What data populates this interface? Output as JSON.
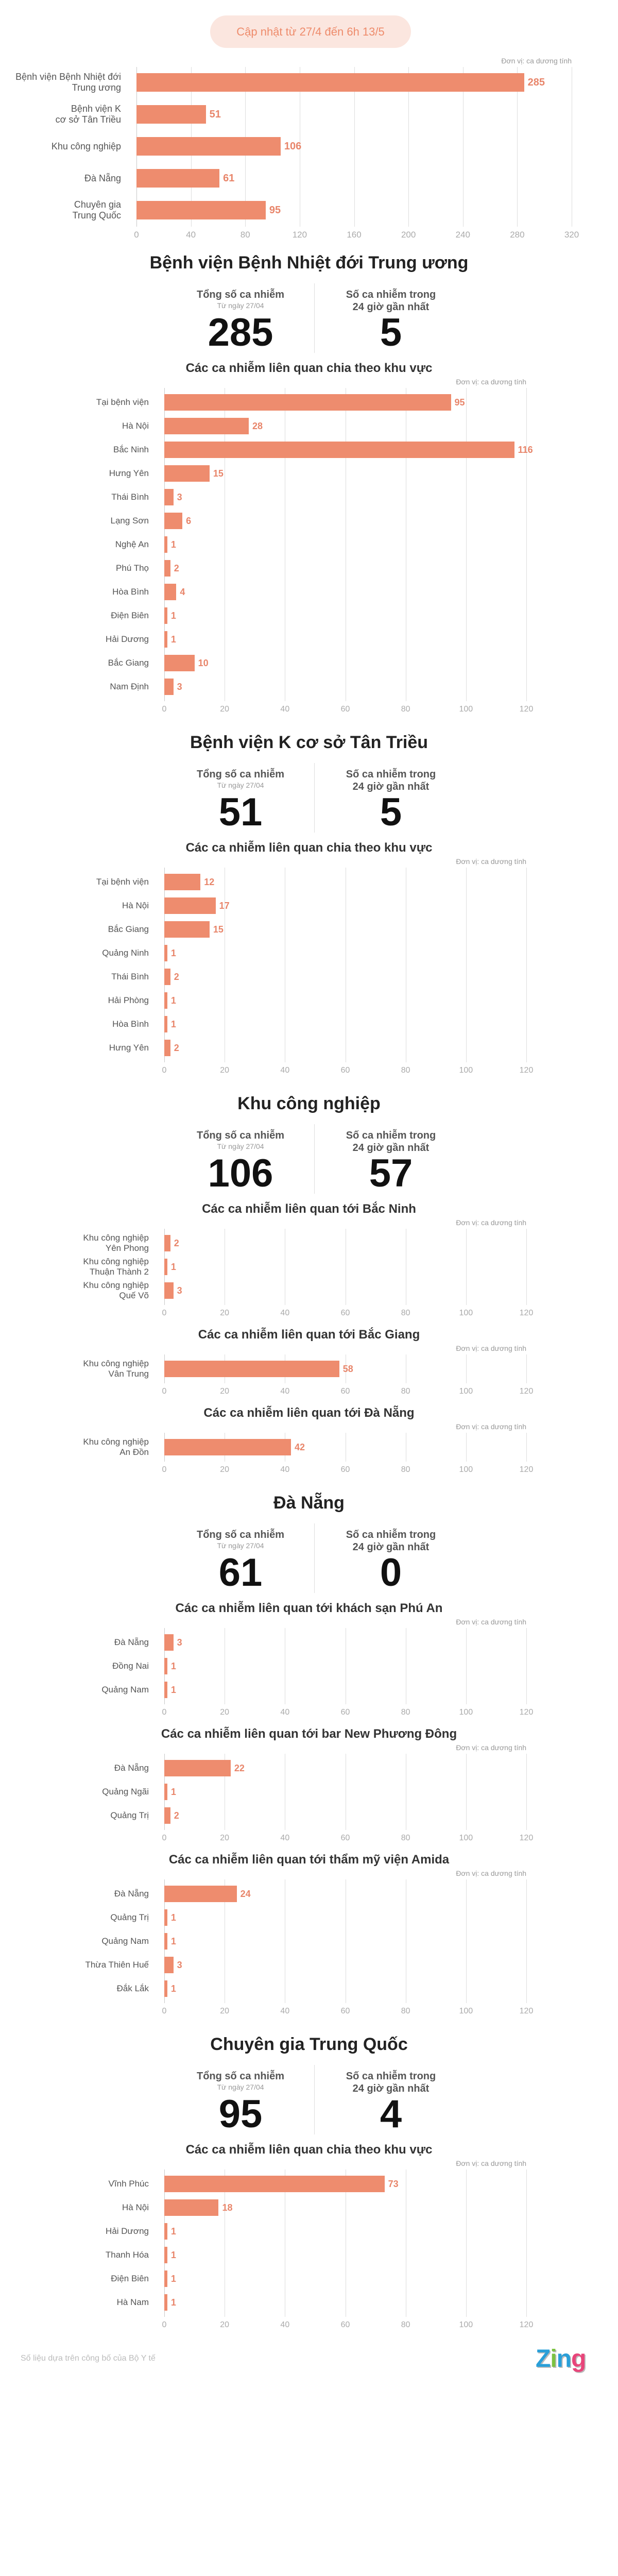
{
  "header": {
    "update_label": "Cập nhật từ 27/4 đến 6h 13/5"
  },
  "stats_labels": {
    "total": "Tổng số ca nhiễm",
    "since": "Từ ngày 27/04",
    "recent_line1": "Số ca nhiễm trong",
    "recent_line2": "24 giờ gần nhất"
  },
  "sections": [
    {
      "title": "Bệnh viện Bệnh Nhiệt đới Trung ương",
      "total": "285",
      "recent": "5"
    },
    {
      "title": "Bệnh viện K cơ sở Tân Triều",
      "total": "51",
      "recent": "5"
    },
    {
      "title": "Khu công nghiệp",
      "total": "106",
      "recent": "57"
    },
    {
      "title": "Đà Nẵng",
      "total": "61",
      "recent": "0"
    },
    {
      "title": "Chuyên gia Trung Quốc",
      "total": "95",
      "recent": "4"
    }
  ],
  "footer": {
    "source": "Số liệu dựa trên công bố của Bộ Y tế",
    "logo": "Zing"
  },
  "colors": {
    "bar": "#ee8c6e",
    "value_label": "#e8856a",
    "pill_bg": "#fbe6df",
    "pill_text": "#ee8b6b",
    "logo": [
      "#2a9fd8",
      "#7cc242",
      "#2a9fd8",
      "#e8457a"
    ]
  },
  "chart_data": [
    {
      "type": "bar",
      "orientation": "horizontal",
      "title": "",
      "unit": "Đơn vị: ca dương tính",
      "categories": [
        "Bệnh viện Bệnh Nhiệt đới\nTrung ương",
        "Bệnh viện K\ncơ sở Tân Triều",
        "Khu công nghiệp",
        "Đà Nẵng",
        "Chuyên gia\nTrung Quốc"
      ],
      "values": [
        285,
        51,
        106,
        61,
        95
      ],
      "xlim": [
        0,
        320
      ],
      "xticks": [
        0,
        40,
        80,
        120,
        160,
        200,
        240,
        280,
        320
      ],
      "grid": true
    },
    {
      "type": "bar",
      "orientation": "horizontal",
      "title": "Các ca nhiễm liên quan chia theo khu vực",
      "unit": "Đơn vị: ca dương tính",
      "categories": [
        "Tại bệnh viện",
        "Hà Nội",
        "Bắc Ninh",
        "Hưng Yên",
        "Thái Bình",
        "Lạng Sơn",
        "Nghệ An",
        "Phú Thọ",
        "Hòa Bình",
        "Điện Biên",
        "Hải Dương",
        "Bắc Giang",
        "Nam Định"
      ],
      "values": [
        95,
        28,
        116,
        15,
        3,
        6,
        1,
        2,
        4,
        1,
        1,
        10,
        3
      ],
      "xlim": [
        0,
        120
      ],
      "xticks": [
        0,
        20,
        40,
        60,
        80,
        100,
        120
      ],
      "grid": true
    },
    {
      "type": "bar",
      "orientation": "horizontal",
      "title": "Các ca nhiễm liên quan chia theo khu vực",
      "unit": "Đơn vị: ca dương tính",
      "categories": [
        "Tại bệnh viện",
        "Hà Nội",
        "Bắc Giang",
        "Quảng Ninh",
        "Thái Bình",
        "Hải Phòng",
        "Hòa Bình",
        "Hưng Yên"
      ],
      "values": [
        12,
        17,
        15,
        1,
        2,
        1,
        1,
        2
      ],
      "xlim": [
        0,
        120
      ],
      "xticks": [
        0,
        20,
        40,
        60,
        80,
        100,
        120
      ],
      "grid": true
    },
    {
      "type": "bar",
      "orientation": "horizontal",
      "title": "Các ca nhiễm liên quan tới Bắc Ninh",
      "unit": "Đơn vị: ca dương tính",
      "categories": [
        "Khu công nghiệp\nYên Phong",
        "Khu công nghiệp\nThuận Thành 2",
        "Khu công nghiệp\nQuế Võ"
      ],
      "values": [
        2,
        1,
        3
      ],
      "xlim": [
        0,
        120
      ],
      "xticks": [
        0,
        20,
        40,
        60,
        80,
        100,
        120
      ],
      "grid": true
    },
    {
      "type": "bar",
      "orientation": "horizontal",
      "title": "Các ca nhiễm liên quan tới Bắc Giang",
      "unit": "Đơn vị: ca dương tính",
      "categories": [
        "Khu công nghiệp\nVân Trung"
      ],
      "values": [
        58
      ],
      "xlim": [
        0,
        120
      ],
      "xticks": [
        0,
        20,
        40,
        60,
        80,
        100,
        120
      ],
      "grid": true
    },
    {
      "type": "bar",
      "orientation": "horizontal",
      "title": "Các ca nhiễm liên quan tới Đà Nẵng",
      "unit": "Đơn vị: ca dương tính",
      "categories": [
        "Khu công nghiệp\nAn Đồn"
      ],
      "values": [
        42
      ],
      "xlim": [
        0,
        120
      ],
      "xticks": [
        0,
        20,
        40,
        60,
        80,
        100,
        120
      ],
      "grid": true
    },
    {
      "type": "bar",
      "orientation": "horizontal",
      "title": "Các ca nhiễm liên quan tới khách sạn Phú An",
      "unit": "Đơn vị: ca dương tính",
      "categories": [
        "Đà Nẵng",
        "Đồng Nai",
        "Quảng Nam"
      ],
      "values": [
        3,
        1,
        1
      ],
      "xlim": [
        0,
        120
      ],
      "xticks": [
        0,
        20,
        40,
        60,
        80,
        100,
        120
      ],
      "grid": true
    },
    {
      "type": "bar",
      "orientation": "horizontal",
      "title": "Các ca nhiễm liên quan tới bar New Phương Đông",
      "unit": "Đơn vị: ca dương tính",
      "categories": [
        "Đà Nẵng",
        "Quảng Ngãi",
        "Quảng Trị"
      ],
      "values": [
        22,
        1,
        2
      ],
      "xlim": [
        0,
        120
      ],
      "xticks": [
        0,
        20,
        40,
        60,
        80,
        100,
        120
      ],
      "grid": true
    },
    {
      "type": "bar",
      "orientation": "horizontal",
      "title": "Các ca nhiễm liên quan tới thẩm mỹ viện Amida",
      "unit": "Đơn vị: ca dương tính",
      "categories": [
        "Đà Nẵng",
        "Quảng Trị",
        "Quảng Nam",
        "Thừa Thiên Huế",
        "Đắk Lắk"
      ],
      "values": [
        24,
        1,
        1,
        3,
        1
      ],
      "xlim": [
        0,
        120
      ],
      "xticks": [
        0,
        20,
        40,
        60,
        80,
        100,
        120
      ],
      "grid": true
    },
    {
      "type": "bar",
      "orientation": "horizontal",
      "title": "Các ca nhiễm liên quan chia theo khu vực",
      "unit": "Đơn vị: ca dương tính",
      "categories": [
        "Vĩnh Phúc",
        "Hà Nội",
        "Hải Dương",
        "Thanh Hóa",
        "Điện Biên",
        "Hà Nam"
      ],
      "values": [
        73,
        18,
        1,
        1,
        1,
        1
      ],
      "xlim": [
        0,
        120
      ],
      "xticks": [
        0,
        20,
        40,
        60,
        80,
        100,
        120
      ],
      "grid": true
    }
  ]
}
